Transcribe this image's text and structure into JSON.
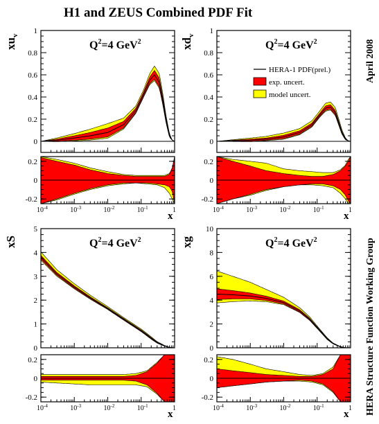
{
  "figure": {
    "title": "H1 and ZEUS Combined PDF Fit",
    "side_top": "April 2008",
    "side_bottom": "HERA Structure Function Working Group",
    "legend": {
      "central": "HERA-1 PDF(prel.)",
      "exp": "exp. uncert.",
      "model": "model uncert."
    },
    "colors": {
      "central": "#000000",
      "exp": "#ff0000",
      "model": "#ffff00",
      "frame": "#000000"
    }
  },
  "chart_data": [
    {
      "type": "area",
      "id": "xuv",
      "ylabel": "xu",
      "ylabel_sub": "v",
      "annotation_q": "Q",
      "annotation_q_sup": "2",
      "annotation_q_rest": "=4 GeV",
      "annotation_q_rest_sup": "2",
      "xscale": "log",
      "xlim": [
        0.0001,
        1
      ],
      "ylim": [
        -0.1,
        1
      ],
      "yticks": [
        0,
        0.2,
        0.4,
        0.6,
        0.8,
        1
      ],
      "ytick_labels": [
        "0",
        "0.2",
        "0.4",
        "0.6",
        "0.8",
        "1"
      ],
      "x": [
        0.0001,
        0.0003,
        0.001,
        0.003,
        0.01,
        0.03,
        0.07,
        0.12,
        0.18,
        0.25,
        0.35,
        0.45,
        0.55,
        0.7,
        0.85,
        1.0
      ],
      "central": [
        0.0,
        0.01,
        0.03,
        0.05,
        0.08,
        0.15,
        0.28,
        0.43,
        0.55,
        0.6,
        0.53,
        0.36,
        0.2,
        0.05,
        0.01,
        0.0
      ],
      "exp_band": [
        0.0,
        0.01,
        0.02,
        0.03,
        0.04,
        0.03,
        0.02,
        0.02,
        0.03,
        0.04,
        0.04,
        0.03,
        0.02,
        0.01,
        0.0,
        0.0
      ],
      "model_band": [
        0.0,
        0.01,
        0.02,
        0.03,
        0.04,
        0.03,
        0.02,
        0.02,
        0.03,
        0.04,
        0.04,
        0.03,
        0.02,
        0.01,
        0.0,
        0.0
      ],
      "ratio": {
        "ylim": [
          -0.25,
          0.25
        ],
        "yticks": [
          -0.2,
          0,
          0.2
        ],
        "ytick_labels": [
          "-0.2",
          "0",
          "0.2"
        ],
        "x": [
          0.0001,
          0.0003,
          0.001,
          0.003,
          0.01,
          0.03,
          0.07,
          0.15,
          0.3,
          0.5,
          0.7,
          0.85,
          1.0
        ],
        "exp_hi": [
          0.24,
          0.2,
          0.16,
          0.11,
          0.07,
          0.05,
          0.04,
          0.04,
          0.04,
          0.04,
          0.06,
          0.12,
          0.25
        ],
        "exp_lo": [
          -0.25,
          -0.2,
          -0.14,
          -0.09,
          -0.05,
          -0.03,
          -0.03,
          -0.03,
          -0.04,
          -0.05,
          -0.07,
          -0.12,
          -0.25
        ],
        "model_hi": [
          0.25,
          0.22,
          0.18,
          0.13,
          0.09,
          0.06,
          0.05,
          0.05,
          0.05,
          0.05,
          0.07,
          0.13,
          0.25
        ],
        "model_lo": [
          -0.25,
          -0.21,
          -0.15,
          -0.1,
          -0.06,
          -0.04,
          -0.03,
          -0.04,
          -0.05,
          -0.08,
          -0.14,
          -0.2,
          -0.25
        ]
      }
    },
    {
      "type": "area",
      "id": "xdv",
      "ylabel": "xd",
      "ylabel_sub": "v",
      "annotation_q": "Q",
      "annotation_q_sup": "2",
      "annotation_q_rest": "=4 GeV",
      "annotation_q_rest_sup": "2",
      "xscale": "log",
      "xlim": [
        0.0001,
        1
      ],
      "ylim": [
        -0.1,
        1
      ],
      "yticks": [
        0,
        0.2,
        0.4,
        0.6,
        0.8,
        1
      ],
      "ytick_labels": [
        "0",
        "0.2",
        "0.4",
        "0.6",
        "0.8",
        "1"
      ],
      "x": [
        0.0001,
        0.0003,
        0.001,
        0.003,
        0.01,
        0.03,
        0.07,
        0.12,
        0.18,
        0.25,
        0.35,
        0.45,
        0.55,
        0.7,
        0.85,
        1.0
      ],
      "central": [
        0.0,
        0.005,
        0.01,
        0.02,
        0.04,
        0.08,
        0.15,
        0.24,
        0.3,
        0.31,
        0.26,
        0.16,
        0.08,
        0.02,
        0.005,
        0.0
      ],
      "exp_band": [
        0.0,
        0.005,
        0.01,
        0.01,
        0.015,
        0.015,
        0.015,
        0.015,
        0.02,
        0.02,
        0.02,
        0.015,
        0.01,
        0.005,
        0.0,
        0.0
      ],
      "model_band": [
        0.0,
        0.005,
        0.01,
        0.015,
        0.02,
        0.02,
        0.02,
        0.02,
        0.025,
        0.025,
        0.025,
        0.02,
        0.015,
        0.005,
        0.0,
        0.0
      ],
      "ratio": {
        "ylim": [
          -0.25,
          0.25
        ],
        "yticks": [
          -0.2,
          0,
          0.2
        ],
        "ytick_labels": [
          "-0.2",
          "0",
          "0.2"
        ],
        "x": [
          0.0001,
          0.0003,
          0.001,
          0.003,
          0.01,
          0.03,
          0.07,
          0.15,
          0.3,
          0.5,
          0.7,
          0.85,
          1.0
        ],
        "exp_hi": [
          0.25,
          0.2,
          0.15,
          0.1,
          0.07,
          0.05,
          0.04,
          0.04,
          0.06,
          0.1,
          0.15,
          0.2,
          0.25
        ],
        "exp_lo": [
          -0.25,
          -0.2,
          -0.15,
          -0.1,
          -0.07,
          -0.05,
          -0.04,
          -0.04,
          -0.06,
          -0.1,
          -0.16,
          -0.22,
          -0.25
        ],
        "model_hi": [
          0.25,
          0.22,
          0.2,
          0.18,
          0.12,
          0.1,
          0.09,
          0.08,
          0.08,
          0.11,
          0.16,
          0.22,
          0.25
        ],
        "model_lo": [
          -0.25,
          -0.2,
          -0.16,
          -0.11,
          -0.07,
          -0.05,
          -0.05,
          -0.06,
          -0.08,
          -0.14,
          -0.2,
          -0.25,
          -0.25
        ]
      }
    },
    {
      "type": "area",
      "id": "xS",
      "ylabel": "xS",
      "ylabel_sub": "",
      "annotation_q": "Q",
      "annotation_q_sup": "2",
      "annotation_q_rest": "=4 GeV",
      "annotation_q_rest_sup": "2",
      "xscale": "log",
      "xlim": [
        0.0001,
        1
      ],
      "ylim": [
        0,
        5
      ],
      "yticks": [
        0,
        1,
        2,
        3,
        4,
        5
      ],
      "ytick_labels": [
        "0",
        "1",
        "2",
        "3",
        "4",
        "5"
      ],
      "x": [
        0.0001,
        0.0003,
        0.001,
        0.003,
        0.01,
        0.03,
        0.1,
        0.2,
        0.3,
        0.5,
        0.7,
        1.0
      ],
      "central": [
        3.8,
        3.1,
        2.55,
        2.1,
        1.65,
        1.2,
        0.72,
        0.4,
        0.22,
        0.08,
        0.02,
        0.0
      ],
      "exp_band": [
        0.08,
        0.06,
        0.05,
        0.04,
        0.03,
        0.03,
        0.03,
        0.03,
        0.02,
        0.01,
        0.0,
        0.0
      ],
      "model_band": [
        0.15,
        0.12,
        0.09,
        0.07,
        0.05,
        0.04,
        0.04,
        0.03,
        0.02,
        0.01,
        0.0,
        0.0
      ],
      "ratio": {
        "ylim": [
          -0.25,
          0.25
        ],
        "yticks": [
          -0.2,
          0,
          0.2
        ],
        "ytick_labels": [
          "-0.2",
          "0",
          "0.2"
        ],
        "x": [
          0.0001,
          0.0003,
          0.001,
          0.003,
          0.01,
          0.03,
          0.07,
          0.15,
          0.3,
          0.5,
          0.7,
          0.85,
          1.0
        ],
        "exp_hi": [
          0.02,
          0.02,
          0.02,
          0.02,
          0.02,
          0.02,
          0.03,
          0.07,
          0.16,
          0.25,
          0.25,
          0.25,
          0.25
        ],
        "exp_lo": [
          -0.02,
          -0.02,
          -0.02,
          -0.02,
          -0.02,
          -0.02,
          -0.03,
          -0.07,
          -0.16,
          -0.25,
          -0.25,
          -0.25,
          -0.25
        ],
        "model_hi": [
          0.04,
          0.04,
          0.04,
          0.04,
          0.04,
          0.04,
          0.05,
          0.08,
          0.17,
          0.25,
          0.25,
          0.25,
          0.25
        ],
        "model_lo": [
          -0.04,
          -0.05,
          -0.06,
          -0.07,
          -0.07,
          -0.07,
          -0.07,
          -0.09,
          -0.17,
          -0.25,
          -0.25,
          -0.25,
          -0.25
        ]
      }
    },
    {
      "type": "area",
      "id": "xg",
      "ylabel": "xg",
      "ylabel_sub": "",
      "annotation_q": "Q",
      "annotation_q_sup": "2",
      "annotation_q_rest": "=4 GeV",
      "annotation_q_rest_sup": "2",
      "xscale": "log",
      "xlim": [
        0.0001,
        1
      ],
      "ylim": [
        0,
        10
      ],
      "yticks": [
        0,
        2,
        4,
        6,
        8,
        10
      ],
      "ytick_labels": [
        "0",
        "2",
        "4",
        "6",
        "8",
        "10"
      ],
      "x": [
        0.0001,
        0.0003,
        0.001,
        0.003,
        0.01,
        0.03,
        0.06,
        0.1,
        0.2,
        0.3,
        0.5,
        0.7,
        1.0
      ],
      "central": [
        4.5,
        4.45,
        4.35,
        4.15,
        3.8,
        3.1,
        2.4,
        1.7,
        0.75,
        0.35,
        0.08,
        0.01,
        0.0
      ],
      "exp_band": [
        0.45,
        0.35,
        0.25,
        0.18,
        0.12,
        0.1,
        0.08,
        0.06,
        0.04,
        0.02,
        0.01,
        0.0,
        0.0
      ],
      "model_band": [
        0.95,
        0.75,
        0.55,
        0.35,
        0.2,
        0.12,
        0.09,
        0.07,
        0.05,
        0.03,
        0.01,
        0.0,
        0.0
      ],
      "model_offset": [
        0.55,
        0.45,
        0.35,
        0.22,
        0.12,
        0.05,
        0.02,
        0.0,
        0.0,
        0.0,
        0.0,
        0.0,
        0.0
      ],
      "ratio": {
        "ylim": [
          -0.25,
          0.25
        ],
        "yticks": [
          -0.2,
          0,
          0.2
        ],
        "ytick_labels": [
          "-0.2",
          "0",
          "0.2"
        ],
        "x": [
          0.0001,
          0.0003,
          0.001,
          0.003,
          0.01,
          0.03,
          0.07,
          0.15,
          0.3,
          0.5,
          0.7,
          0.85,
          1.0
        ],
        "exp_hi": [
          0.1,
          0.08,
          0.06,
          0.04,
          0.03,
          0.02,
          0.02,
          0.04,
          0.1,
          0.25,
          0.25,
          0.25,
          0.25
        ],
        "exp_lo": [
          -0.1,
          -0.08,
          -0.06,
          -0.04,
          -0.03,
          -0.02,
          -0.03,
          -0.06,
          -0.14,
          -0.25,
          -0.25,
          -0.25,
          -0.25
        ],
        "model_hi": [
          0.23,
          0.2,
          0.15,
          0.1,
          0.07,
          0.04,
          0.03,
          0.05,
          0.12,
          0.25,
          0.25,
          0.25,
          0.25
        ],
        "model_lo": [
          -0.1,
          -0.08,
          -0.06,
          -0.04,
          -0.03,
          -0.03,
          -0.04,
          -0.07,
          -0.15,
          -0.25,
          -0.25,
          -0.25,
          -0.25
        ]
      }
    }
  ],
  "xaxis": {
    "label": "x",
    "tick_base": "10",
    "tick_exps": [
      "-4",
      "-3",
      "-2",
      "-1",
      ""
    ],
    "tick_last": "1"
  }
}
